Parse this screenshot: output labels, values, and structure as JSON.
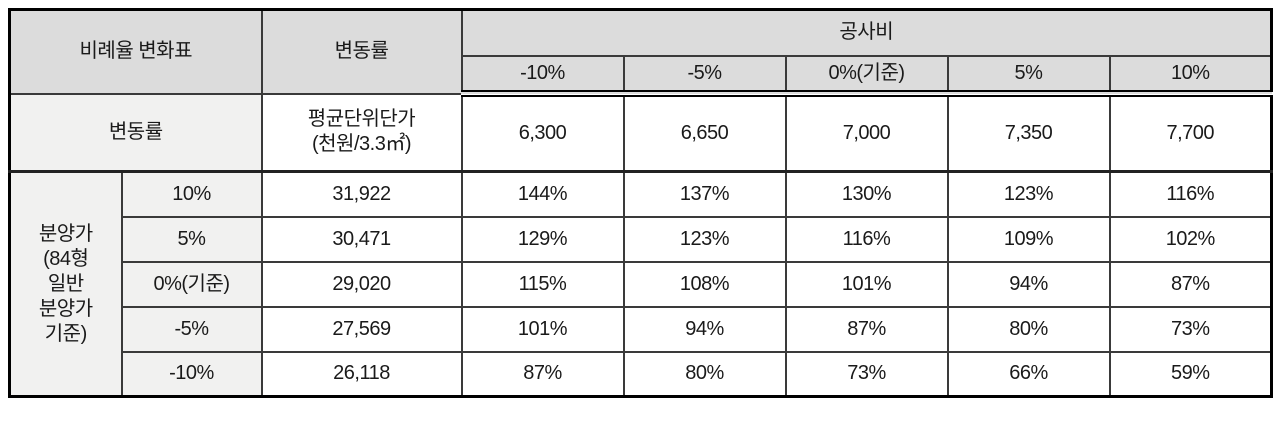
{
  "table": {
    "header": {
      "corner_label": "비례율 변화표",
      "change_rate_label": "변동률",
      "cost_group_label": "공사비",
      "cost_levels": [
        "-10%",
        "-5%",
        "0%(기준)",
        "5%",
        "10%"
      ]
    },
    "unit_row": {
      "label": "변동률",
      "unit_price_label": "평균단위단가\n(천원/3.3㎡)",
      "values": [
        "6,300",
        "6,650",
        "7,000",
        "7,350",
        "7,700"
      ]
    },
    "body": {
      "group_label": "분양가\n(84형\n일반\n분양가\n기준)",
      "rows": [
        {
          "label": "10%",
          "unit_price": "31,922",
          "values": [
            "144%",
            "137%",
            "130%",
            "123%",
            "116%"
          ]
        },
        {
          "label": "5%",
          "unit_price": "30,471",
          "values": [
            "129%",
            "123%",
            "116%",
            "109%",
            "102%"
          ]
        },
        {
          "label": "0%(기준)",
          "unit_price": "29,020",
          "values": [
            "115%",
            "108%",
            "101%",
            "94%",
            "87%"
          ]
        },
        {
          "label": "-5%",
          "unit_price": "27,569",
          "values": [
            "101%",
            "94%",
            "87%",
            "80%",
            "73%"
          ]
        },
        {
          "label": "-10%",
          "unit_price": "26,118",
          "values": [
            "87%",
            "80%",
            "73%",
            "66%",
            "59%"
          ]
        }
      ]
    },
    "colors": {
      "header_bg": "#dcdcdc",
      "label_bg": "#f1f1f0",
      "border": "#3a3a3a",
      "outer_border": "#000000"
    }
  }
}
